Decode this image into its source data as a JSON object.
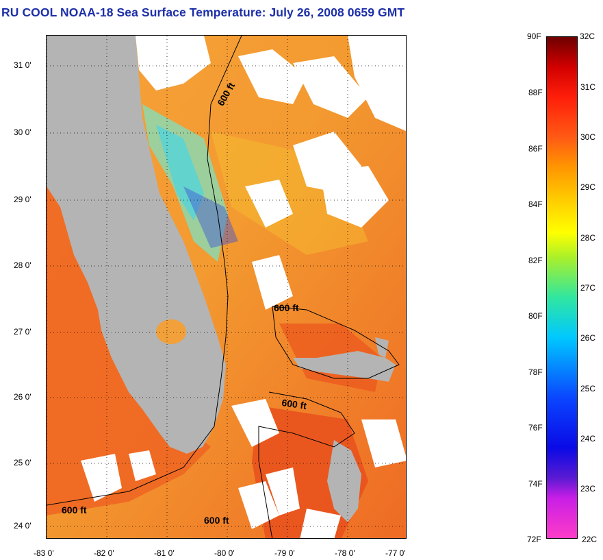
{
  "title": "RU COOL  NOAA-18  Sea Surface Temperature:  July 26, 2008 0659 GMT",
  "latitude_labels": [
    "31 0'",
    "30 0'",
    "29 0'",
    "28 0'",
    "27 0'",
    "26 0'",
    "25 0'",
    "24 0'"
  ],
  "longitude_labels": [
    "-83 0'",
    "-82 0'",
    "-81 0'",
    "-80 0'",
    "-79 0'",
    "-78 0'",
    "-77 0'"
  ],
  "contour_labels": [
    "600 ft",
    "600 ft",
    "600 ft",
    "600 ft",
    "600 ft"
  ],
  "colorbar": {
    "fahrenheit": [
      "90F",
      "88F",
      "86F",
      "84F",
      "82F",
      "80F",
      "78F",
      "76F",
      "74F",
      "72F"
    ],
    "celsius": [
      "32C",
      "31C",
      "30C",
      "29C",
      "28C",
      "27C",
      "26C",
      "25C",
      "24C",
      "23C",
      "22C"
    ]
  },
  "colors": {
    "title": "#1d2fa8",
    "land": "#b4b4b4",
    "warm_water": "#f07a2a",
    "clouds": "#ffffff"
  }
}
